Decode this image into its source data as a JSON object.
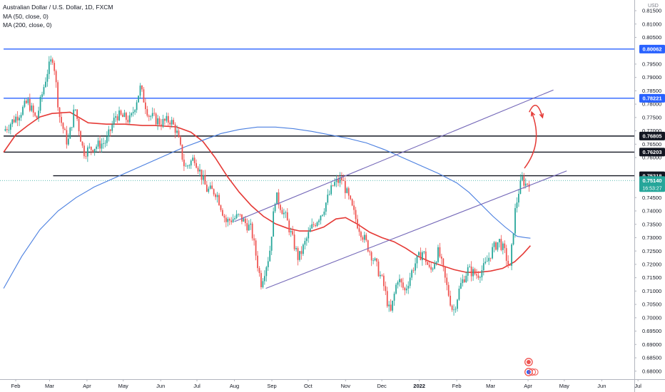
{
  "chart_data": {
    "type": "candlestick",
    "title": "Australian Dollar / U.S. Dollar, 1D, FXCM",
    "indicators": [
      {
        "name": "MA (50, close, 0)",
        "color": "#e53935"
      },
      {
        "name": "MA (200, close, 0)",
        "color": "#4a7fe0"
      }
    ],
    "y_axis": {
      "unit": "USD",
      "ylim": [
        0.677,
        0.819
      ],
      "ticks": [
        "0.81500",
        "0.81000",
        "0.80500",
        "0.79500",
        "0.79000",
        "0.78500",
        "0.78000",
        "0.77500",
        "0.77000",
        "0.76500",
        "0.76000",
        "0.74500",
        "0.74000",
        "0.73500",
        "0.73000",
        "0.72500",
        "0.72000",
        "0.71500",
        "0.71000",
        "0.70500",
        "0.70000",
        "0.69500",
        "0.69000",
        "0.68500",
        "0.68000"
      ]
    },
    "x_axis": {
      "ticks": [
        {
          "label": "Feb",
          "day": 0
        },
        {
          "label": "Mar",
          "day": 28
        },
        {
          "label": "Apr",
          "day": 59
        },
        {
          "label": "May",
          "day": 89
        },
        {
          "label": "Jun",
          "day": 120
        },
        {
          "label": "Jul",
          "day": 150
        },
        {
          "label": "Aug",
          "day": 181
        },
        {
          "label": "Sep",
          "day": 212
        },
        {
          "label": "Oct",
          "day": 242
        },
        {
          "label": "Nov",
          "day": 273
        },
        {
          "label": "Dec",
          "day": 303
        },
        {
          "label": "2022",
          "day": 334
        },
        {
          "label": "Feb",
          "day": 365
        },
        {
          "label": "Mar",
          "day": 393
        },
        {
          "label": "Apr",
          "day": 424
        },
        {
          "label": "May",
          "day": 454
        },
        {
          "label": "Jun",
          "day": 485
        },
        {
          "label": "Jul",
          "day": 515
        }
      ]
    },
    "price_series": [
      {
        "day": -10,
        "close": 0.77
      },
      {
        "day": 4,
        "close": 0.777
      },
      {
        "day": 10,
        "close": 0.781
      },
      {
        "day": 17,
        "close": 0.774
      },
      {
        "day": 26,
        "close": 0.792
      },
      {
        "day": 31,
        "close": 0.798
      },
      {
        "day": 36,
        "close": 0.776
      },
      {
        "day": 43,
        "close": 0.765
      },
      {
        "day": 49,
        "close": 0.779
      },
      {
        "day": 56,
        "close": 0.762
      },
      {
        "day": 65,
        "close": 0.764
      },
      {
        "day": 75,
        "close": 0.766
      },
      {
        "day": 83,
        "close": 0.776
      },
      {
        "day": 95,
        "close": 0.774
      },
      {
        "day": 103,
        "close": 0.786
      },
      {
        "day": 110,
        "close": 0.776
      },
      {
        "day": 120,
        "close": 0.773
      },
      {
        "day": 128,
        "close": 0.774
      },
      {
        "day": 133,
        "close": 0.77
      },
      {
        "day": 140,
        "close": 0.756
      },
      {
        "day": 148,
        "close": 0.76
      },
      {
        "day": 158,
        "close": 0.748
      },
      {
        "day": 166,
        "close": 0.747
      },
      {
        "day": 174,
        "close": 0.736
      },
      {
        "day": 185,
        "close": 0.738
      },
      {
        "day": 195,
        "close": 0.733
      },
      {
        "day": 203,
        "close": 0.713
      },
      {
        "day": 210,
        "close": 0.724
      },
      {
        "day": 215,
        "close": 0.746
      },
      {
        "day": 224,
        "close": 0.737
      },
      {
        "day": 234,
        "close": 0.722
      },
      {
        "day": 244,
        "close": 0.733
      },
      {
        "day": 254,
        "close": 0.74
      },
      {
        "day": 263,
        "close": 0.75
      },
      {
        "day": 270,
        "close": 0.752
      },
      {
        "day": 276,
        "close": 0.744
      },
      {
        "day": 283,
        "close": 0.735
      },
      {
        "day": 290,
        "close": 0.728
      },
      {
        "day": 298,
        "close": 0.72
      },
      {
        "day": 304,
        "close": 0.713
      },
      {
        "day": 310,
        "close": 0.701
      },
      {
        "day": 316,
        "close": 0.715
      },
      {
        "day": 322,
        "close": 0.71
      },
      {
        "day": 330,
        "close": 0.72
      },
      {
        "day": 337,
        "close": 0.725
      },
      {
        "day": 343,
        "close": 0.717
      },
      {
        "day": 350,
        "close": 0.725
      },
      {
        "day": 356,
        "close": 0.713
      },
      {
        "day": 362,
        "close": 0.702
      },
      {
        "day": 368,
        "close": 0.712
      },
      {
        "day": 374,
        "close": 0.718
      },
      {
        "day": 382,
        "close": 0.716
      },
      {
        "day": 388,
        "close": 0.719
      },
      {
        "day": 394,
        "close": 0.725
      },
      {
        "day": 400,
        "close": 0.729
      },
      {
        "day": 405,
        "close": 0.724
      },
      {
        "day": 409,
        "close": 0.718
      },
      {
        "day": 413,
        "close": 0.739
      },
      {
        "day": 416,
        "close": 0.747
      },
      {
        "day": 419,
        "close": 0.752
      },
      {
        "day": 422,
        "close": 0.75
      },
      {
        "day": 426,
        "close": 0.7514
      }
    ],
    "series": [
      {
        "name": "MA (50, close, 0)",
        "color": "#e53935",
        "points": [
          [
            -10,
            0.762
          ],
          [
            0,
            0.7685
          ],
          [
            10,
            0.772
          ],
          [
            20,
            0.7752
          ],
          [
            30,
            0.7765
          ],
          [
            45,
            0.777
          ],
          [
            60,
            0.773
          ],
          [
            75,
            0.7725
          ],
          [
            90,
            0.7725
          ],
          [
            105,
            0.772
          ],
          [
            115,
            0.772
          ],
          [
            125,
            0.7717
          ],
          [
            133,
            0.7715
          ],
          [
            145,
            0.7695
          ],
          [
            155,
            0.766
          ],
          [
            165,
            0.76
          ],
          [
            175,
            0.753
          ],
          [
            185,
            0.747
          ],
          [
            195,
            0.742
          ],
          [
            205,
            0.738
          ],
          [
            215,
            0.7352
          ],
          [
            225,
            0.7335
          ],
          [
            235,
            0.7325
          ],
          [
            245,
            0.7325
          ],
          [
            255,
            0.734
          ],
          [
            265,
            0.737
          ],
          [
            273,
            0.7375
          ],
          [
            283,
            0.735
          ],
          [
            293,
            0.732
          ],
          [
            303,
            0.73
          ],
          [
            313,
            0.7285
          ],
          [
            323,
            0.726
          ],
          [
            333,
            0.723
          ],
          [
            343,
            0.721
          ],
          [
            353,
            0.7195
          ],
          [
            363,
            0.718
          ],
          [
            373,
            0.717
          ],
          [
            383,
            0.717
          ],
          [
            393,
            0.7175
          ],
          [
            403,
            0.7185
          ],
          [
            413,
            0.721
          ],
          [
            420,
            0.724
          ],
          [
            426,
            0.727
          ]
        ]
      },
      {
        "name": "MA (200, close, 0)",
        "color": "#4a7fe0",
        "points": [
          [
            -10,
            0.711
          ],
          [
            5,
            0.723
          ],
          [
            20,
            0.733
          ],
          [
            35,
            0.74
          ],
          [
            50,
            0.745
          ],
          [
            65,
            0.749
          ],
          [
            80,
            0.752
          ],
          [
            95,
            0.755
          ],
          [
            110,
            0.758
          ],
          [
            125,
            0.761
          ],
          [
            140,
            0.764
          ],
          [
            155,
            0.7665
          ],
          [
            170,
            0.769
          ],
          [
            185,
            0.7705
          ],
          [
            200,
            0.7714
          ],
          [
            215,
            0.7714
          ],
          [
            230,
            0.7708
          ],
          [
            245,
            0.7698
          ],
          [
            260,
            0.7685
          ],
          [
            275,
            0.7672
          ],
          [
            290,
            0.7655
          ],
          [
            305,
            0.763
          ],
          [
            320,
            0.76
          ],
          [
            335,
            0.757
          ],
          [
            350,
            0.754
          ],
          [
            365,
            0.7505
          ],
          [
            375,
            0.747
          ],
          [
            385,
            0.7425
          ],
          [
            395,
            0.738
          ],
          [
            405,
            0.734
          ],
          [
            415,
            0.7305
          ],
          [
            422,
            0.73
          ],
          [
            426,
            0.7298
          ]
        ]
      }
    ],
    "trend_lines": [
      {
        "name": "channel-upper",
        "from": [
          181,
          0.736
        ],
        "to": [
          445,
          0.7853
        ],
        "color": "#7367b8"
      },
      {
        "name": "channel-lower",
        "from": [
          207,
          0.711
        ],
        "to": [
          456,
          0.755
        ],
        "color": "#7367b8"
      }
    ],
    "horizontal_levels": [
      {
        "value": 0.80062,
        "label": "0.80062",
        "color": "#2962ff",
        "from_day": -10
      },
      {
        "value": 0.78221,
        "label": "0.78221",
        "color": "#2962ff",
        "from_day": -10
      },
      {
        "value": 0.76805,
        "label": "0.76805",
        "color": "#131722",
        "from_day": -10
      },
      {
        "value": 0.76203,
        "label": "0.76203",
        "color": "#131722",
        "from_day": -10
      },
      {
        "value": 0.75318,
        "label": "0.75318",
        "color": "#131722",
        "from_day": 31
      }
    ],
    "current_price": {
      "value": 0.7514,
      "label": "0.75140",
      "countdown": "16:53:27",
      "color": "#26a69a"
    },
    "annotations": [
      {
        "type": "curved-arrow",
        "from": [
          421,
          0.756
        ],
        "control": [
          437,
          0.7655
        ],
        "to": [
          427,
          0.777
        ],
        "color": "#e53935"
      },
      {
        "type": "curved-arrow",
        "from": [
          425,
          0.777
        ],
        "control": [
          431,
          0.783
        ],
        "to": [
          436,
          0.775
        ],
        "color": "#e53935"
      }
    ],
    "grid": false
  }
}
